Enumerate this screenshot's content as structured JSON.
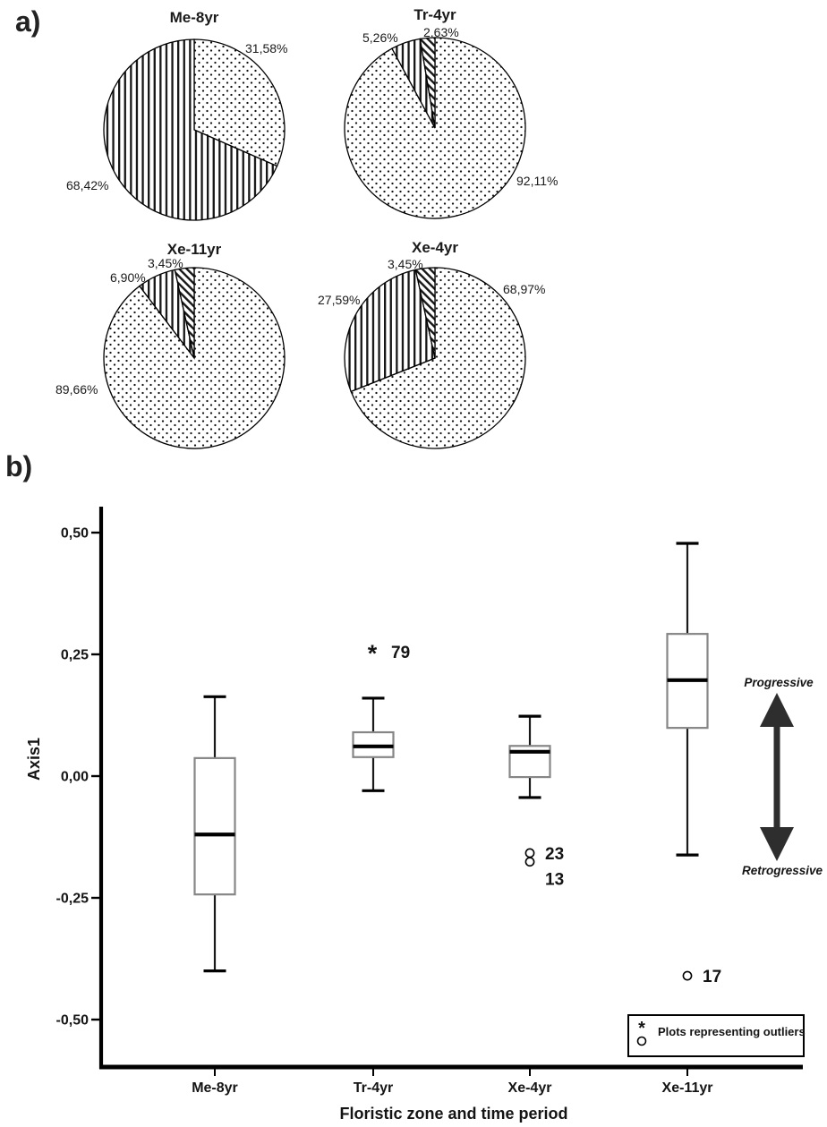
{
  "figure": {
    "panel_a_label": "a)",
    "panel_b_label": "b)"
  },
  "chart_data": [
    {
      "type": "pie",
      "title": "Me-8yr",
      "slices": [
        {
          "label": "31,58%",
          "value": 31.58,
          "pattern": "dots"
        },
        {
          "label": "68,42%",
          "value": 68.42,
          "pattern": "vlines"
        }
      ]
    },
    {
      "type": "pie",
      "title": "Tr-4yr",
      "slices": [
        {
          "label": "92,11%",
          "value": 92.11,
          "pattern": "dots"
        },
        {
          "label": "5,26%",
          "value": 5.26,
          "pattern": "vlines"
        },
        {
          "label": "2,63%",
          "value": 2.63,
          "pattern": "hatch"
        }
      ]
    },
    {
      "type": "pie",
      "title": "Xe-11yr",
      "slices": [
        {
          "label": "89,66%",
          "value": 89.66,
          "pattern": "dots"
        },
        {
          "label": "6,90%",
          "value": 6.9,
          "pattern": "vlines"
        },
        {
          "label": "3,45%",
          "value": 3.45,
          "pattern": "hatch"
        }
      ]
    },
    {
      "type": "pie",
      "title": "Xe-4yr",
      "slices": [
        {
          "label": "68,97%",
          "value": 68.97,
          "pattern": "dots"
        },
        {
          "label": "27,59%",
          "value": 27.59,
          "pattern": "vlines"
        },
        {
          "label": "3,45%",
          "value": 3.45,
          "pattern": "hatch"
        }
      ]
    },
    {
      "type": "box",
      "xlabel": "Floristic zone and time period",
      "ylabel": "Axis1",
      "ylim": [
        -0.6,
        0.55
      ],
      "grid": false,
      "yticks": [
        {
          "value": 0.5,
          "label": "0,50"
        },
        {
          "value": 0.25,
          "label": "0,25"
        },
        {
          "value": 0,
          "label": "0,00"
        },
        {
          "value": -0.25,
          "label": "-0,25"
        },
        {
          "value": -0.5,
          "label": "-0,50"
        }
      ],
      "categories": [
        "Me-8yr",
        "Tr-4yr",
        "Xe-4yr",
        "Xe-11yr"
      ],
      "boxes": [
        {
          "category": "Me-8yr",
          "whisker_low": -0.4,
          "q1": -0.243,
          "median": -0.12,
          "q3": 0.037,
          "whisker_high": 0.163,
          "outliers": []
        },
        {
          "category": "Tr-4yr",
          "whisker_low": -0.03,
          "q1": 0.039,
          "median": 0.061,
          "q3": 0.09,
          "whisker_high": 0.16,
          "outliers": [
            {
              "value": 0.257,
              "marker": "star",
              "label": "79"
            }
          ]
        },
        {
          "category": "Xe-4yr",
          "whisker_low": -0.044,
          "q1": -0.002,
          "median": 0.05,
          "q3": 0.062,
          "whisker_high": 0.123,
          "outliers": [
            {
              "value": -0.158,
              "marker": "circle",
              "label": "23"
            },
            {
              "value": -0.176,
              "marker": "circle",
              "label": "13"
            }
          ]
        },
        {
          "category": "Xe-11yr",
          "whisker_low": -0.162,
          "q1": 0.099,
          "median": 0.197,
          "q3": 0.292,
          "whisker_high": 0.478,
          "outliers": [
            {
              "value": -0.41,
              "marker": "circle",
              "label": "17"
            }
          ]
        }
      ],
      "legend": {
        "star_glyph": "*",
        "text": "Plots representing outliers",
        "position": "bottom-right"
      },
      "annotations": {
        "progressive": "Progressive",
        "retrogressive": "Retrogressive"
      }
    }
  ]
}
